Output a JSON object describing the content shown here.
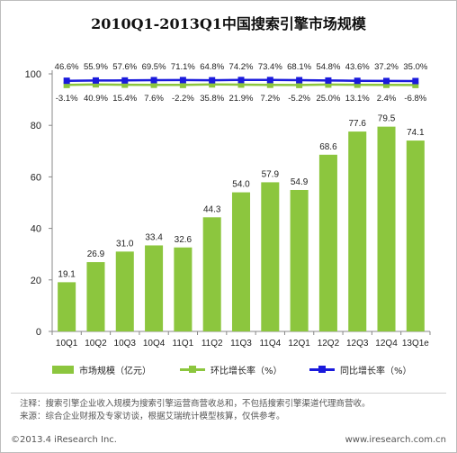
{
  "chart_data": {
    "type": "bar",
    "title": "2010Q1-2013Q1中国搜索引擎市场规模",
    "categories": [
      "10Q1",
      "10Q2",
      "10Q3",
      "10Q4",
      "11Q1",
      "11Q2",
      "11Q3",
      "11Q4",
      "12Q1",
      "12Q2",
      "12Q3",
      "12Q4",
      "13Q1e"
    ],
    "ylim": [
      0,
      100
    ],
    "yticks": [
      0,
      20,
      40,
      60,
      80,
      100
    ],
    "series": [
      {
        "name": "市场规模（亿元）",
        "kind": "bar",
        "color": "#8cc63e",
        "values": [
          19.1,
          26.9,
          31.0,
          33.4,
          32.6,
          44.3,
          54.0,
          57.9,
          54.9,
          68.6,
          77.6,
          79.5,
          74.1
        ],
        "labels": [
          "19.1",
          "26.9",
          "31.0",
          "33.4",
          "32.6",
          "44.3",
          "54.0",
          "57.9",
          "54.9",
          "68.6",
          "77.6",
          "79.5",
          "74.1"
        ]
      },
      {
        "name": "环比增长率（%）",
        "kind": "line",
        "color": "#8cc63e",
        "marker": "square",
        "values": [
          -3.1,
          40.9,
          15.4,
          7.6,
          -2.2,
          35.8,
          21.9,
          7.2,
          -5.2,
          25.0,
          13.1,
          2.4,
          -6.8
        ],
        "labels": [
          "-3.1%",
          "40.9%",
          "15.4%",
          "7.6%",
          "-2.2%",
          "35.8%",
          "21.9%",
          "7.2%",
          "-5.2%",
          "25.0%",
          "13.1%",
          "2.4%",
          "-6.8%"
        ]
      },
      {
        "name": "同比增长率（%）",
        "kind": "line",
        "color": "#1a1adc",
        "marker": "square",
        "values": [
          46.6,
          55.9,
          57.6,
          69.5,
          71.1,
          64.8,
          74.2,
          73.4,
          68.1,
          54.8,
          43.6,
          37.2,
          35.0
        ],
        "labels": [
          "46.6%",
          "55.9%",
          "57.6%",
          "69.5%",
          "71.1%",
          "64.8%",
          "74.2%",
          "73.4%",
          "68.1%",
          "54.8%",
          "43.6%",
          "37.2%",
          "35.0%"
        ]
      }
    ],
    "legend_position": "bottom"
  },
  "notes": [
    "注释：搜索引擎企业收入规模为搜索引擎运营商营收总和，不包括搜索引擎渠道代理商营收。",
    "来源：综合企业财报及专家访谈，根据艾瑞统计模型核算，仅供参考。"
  ],
  "footer": {
    "copyright": "©2013.4 iResearch Inc.",
    "site": "www.iresearch.com.cn"
  }
}
